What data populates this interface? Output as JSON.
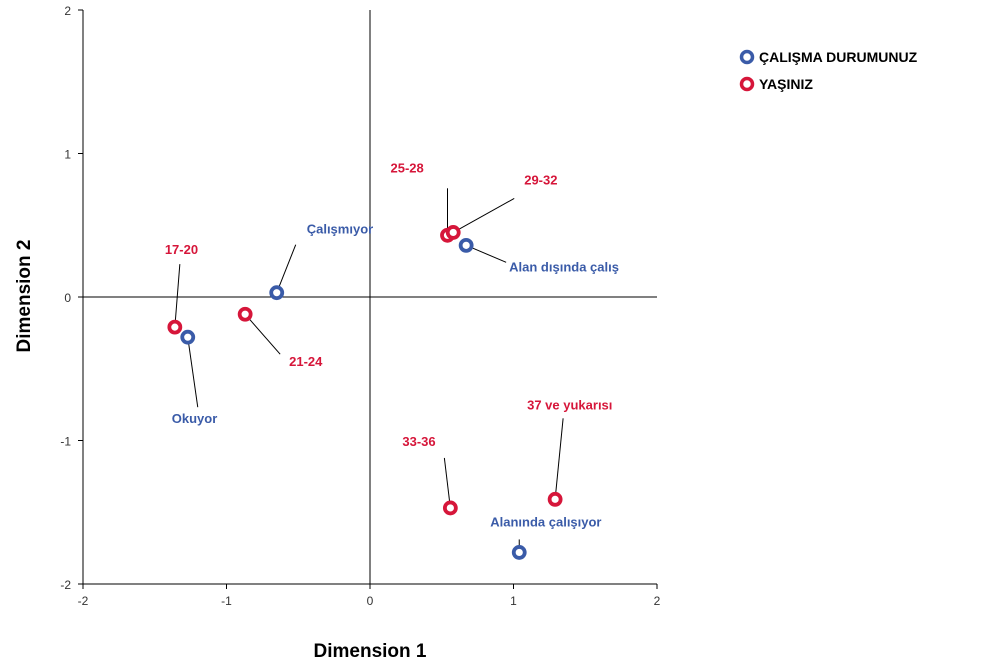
{
  "chart_data": {
    "type": "scatter",
    "xlabel": "Dimension 1",
    "ylabel": "Dimension 2",
    "xlim": [
      -2,
      2
    ],
    "ylim": [
      -2,
      2
    ],
    "xticks": [
      "-2",
      "-1",
      "0",
      "1",
      "2"
    ],
    "yticks": [
      "2",
      "1",
      "0",
      "-1",
      "-2"
    ],
    "grid": false,
    "reference_lines": {
      "x": 0,
      "y": 0
    },
    "legend_position": "top-right",
    "series": [
      {
        "name": "ÇALIŞMA DURUMUNUZ",
        "color": "#3a5ba8",
        "points": [
          {
            "label": "Çalışmıyor",
            "x": -0.65,
            "y": 0.03
          },
          {
            "label": "Alan dışında çalış",
            "x": 0.67,
            "y": 0.36
          },
          {
            "label": "Okuyor",
            "x": -1.27,
            "y": -0.28
          },
          {
            "label": "Alanında çalışıyor",
            "x": 1.04,
            "y": -1.78
          }
        ]
      },
      {
        "name": "YAŞINIZ",
        "color": "#d6163a",
        "points": [
          {
            "label": "25-28",
            "x": 0.54,
            "y": 0.43
          },
          {
            "label": "29-32",
            "x": 0.58,
            "y": 0.45
          },
          {
            "label": "17-20",
            "x": -1.36,
            "y": -0.21
          },
          {
            "label": "21-24",
            "x": -0.87,
            "y": -0.12
          },
          {
            "label": "33-36",
            "x": 0.56,
            "y": -1.47
          },
          {
            "label": "37 ve yukarısı",
            "x": 1.29,
            "y": -1.41
          }
        ]
      }
    ]
  }
}
